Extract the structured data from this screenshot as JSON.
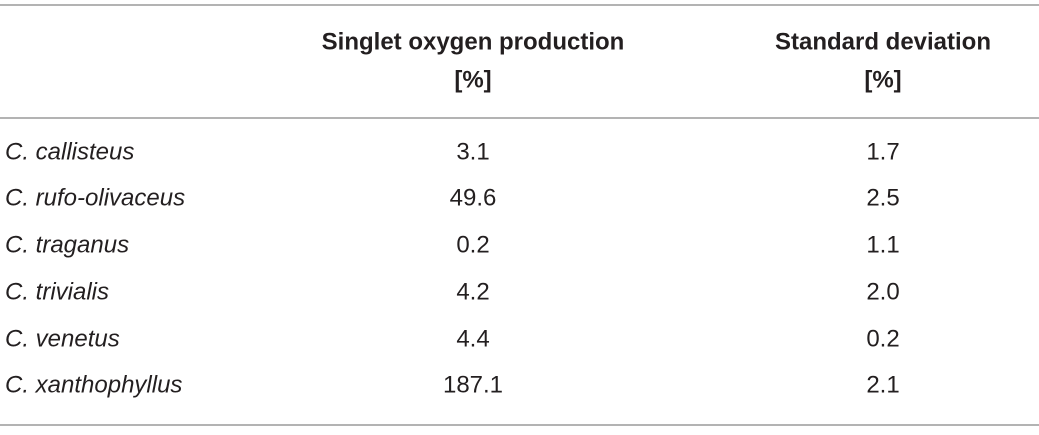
{
  "table": {
    "header": [
      [
        "Singlet oxygen production",
        "[%]"
      ],
      [
        "Standard deviation",
        "[%]"
      ]
    ],
    "rows": [
      [
        "C. callisteus",
        "3.1",
        "1.7"
      ],
      [
        "C. rufo-olivaceus",
        "49.6",
        "2.5"
      ],
      [
        "C. traganus",
        "0.2",
        "1.1"
      ],
      [
        "C. trivialis",
        "4.2",
        "2.0"
      ],
      [
        "C. venetus",
        "4.4",
        "0.2"
      ],
      [
        "C. xanthophyllus",
        "187.1",
        "2.1"
      ]
    ]
  }
}
